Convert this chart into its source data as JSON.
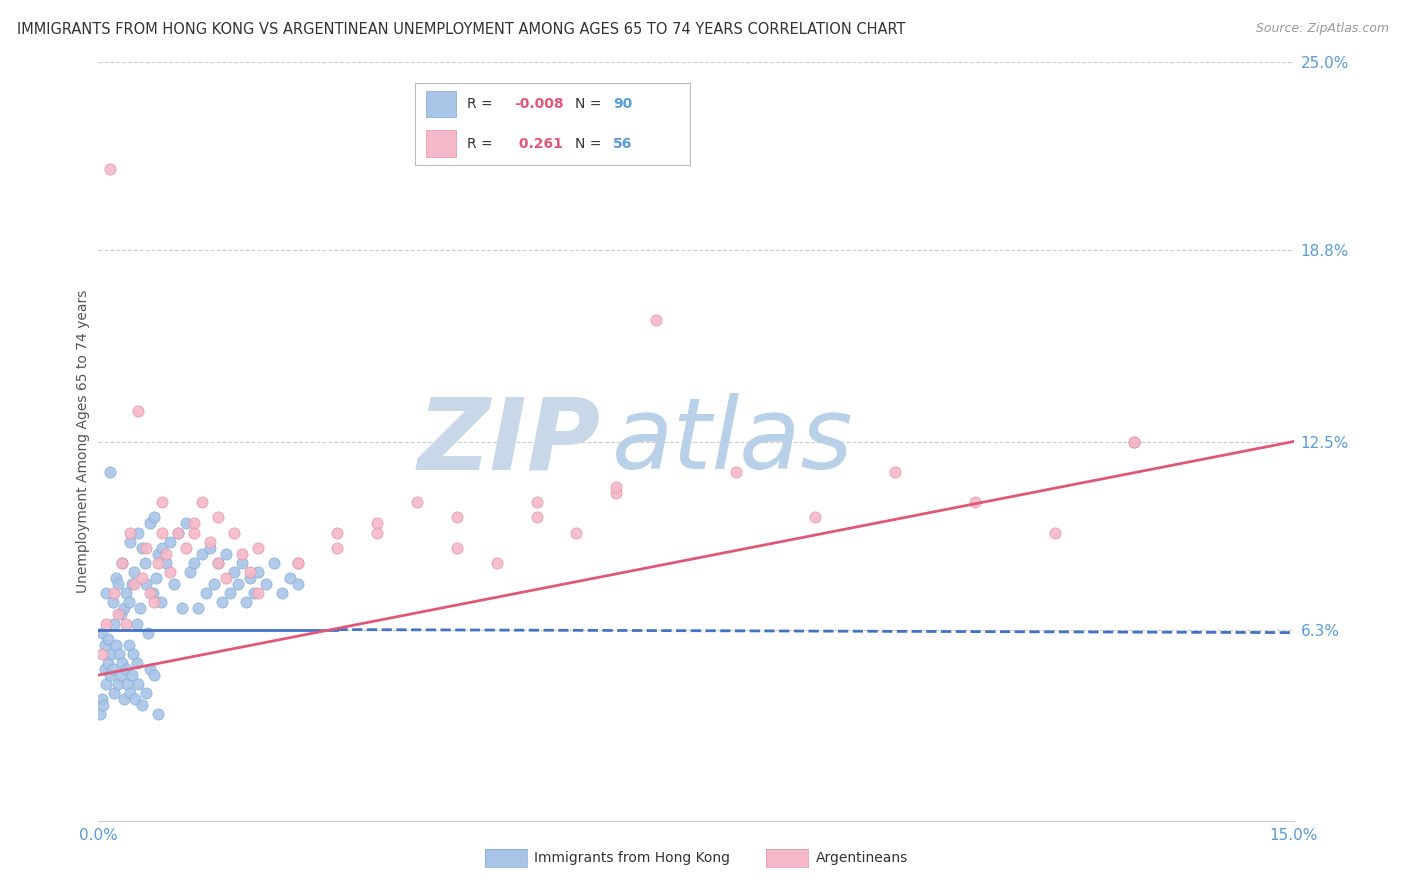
{
  "title": "IMMIGRANTS FROM HONG KONG VS ARGENTINEAN UNEMPLOYMENT AMONG AGES 65 TO 74 YEARS CORRELATION CHART",
  "source": "Source: ZipAtlas.com",
  "ylabel": "Unemployment Among Ages 65 to 74 years",
  "xlim": [
    0.0,
    15.0
  ],
  "ylim": [
    0.0,
    25.0
  ],
  "x_tick_labels": [
    "0.0%",
    "15.0%"
  ],
  "y_tick_values": [
    0.0,
    6.3,
    12.5,
    18.8,
    25.0
  ],
  "y_tick_labels": [
    "",
    "6.3%",
    "12.5%",
    "18.8%",
    "25.0%"
  ],
  "grid_color": "#cccccc",
  "background_color": "#ffffff",
  "watermark_zip": "ZIP",
  "watermark_atlas": "atlas",
  "watermark_zip_color": "#c8d8e8",
  "watermark_atlas_color": "#b8d0e8",
  "series": [
    {
      "name": "Immigrants from Hong Kong",
      "R": -0.008,
      "N": 90,
      "color": "#aac4e8",
      "edge_color": "#7bacd4",
      "line_color": "#4472c4",
      "line_style": "--"
    },
    {
      "name": "Argentineans",
      "R": 0.261,
      "N": 56,
      "color": "#f4b8c8",
      "edge_color": "#e090a8",
      "line_color": "#e05878",
      "line_style": "-"
    }
  ],
  "blue_x": [
    0.05,
    0.08,
    0.1,
    0.12,
    0.15,
    0.18,
    0.2,
    0.22,
    0.25,
    0.28,
    0.3,
    0.32,
    0.35,
    0.38,
    0.4,
    0.42,
    0.45,
    0.48,
    0.5,
    0.52,
    0.55,
    0.58,
    0.6,
    0.62,
    0.65,
    0.68,
    0.7,
    0.72,
    0.75,
    0.78,
    0.8,
    0.85,
    0.9,
    0.95,
    1.0,
    1.05,
    1.1,
    1.15,
    1.2,
    1.25,
    1.3,
    1.35,
    1.4,
    1.45,
    1.5,
    1.55,
    1.6,
    1.65,
    1.7,
    1.75,
    1.8,
    1.85,
    1.9,
    1.95,
    2.0,
    2.1,
    2.2,
    2.3,
    2.4,
    2.5,
    0.02,
    0.04,
    0.06,
    0.08,
    0.1,
    0.12,
    0.14,
    0.16,
    0.18,
    0.2,
    0.22,
    0.24,
    0.26,
    0.28,
    0.3,
    0.32,
    0.34,
    0.36,
    0.38,
    0.4,
    0.42,
    0.44,
    0.46,
    0.48,
    0.5,
    0.55,
    0.6,
    0.65,
    0.7,
    0.75
  ],
  "blue_y": [
    6.2,
    5.8,
    7.5,
    6.0,
    11.5,
    7.2,
    6.5,
    8.0,
    7.8,
    6.8,
    8.5,
    7.0,
    7.5,
    7.2,
    9.2,
    7.8,
    8.2,
    6.5,
    9.5,
    7.0,
    9.0,
    8.5,
    7.8,
    6.2,
    9.8,
    7.5,
    10.0,
    8.0,
    8.8,
    7.2,
    9.0,
    8.5,
    9.2,
    7.8,
    9.5,
    7.0,
    9.8,
    8.2,
    8.5,
    7.0,
    8.8,
    7.5,
    9.0,
    7.8,
    8.5,
    7.2,
    8.8,
    7.5,
    8.2,
    7.8,
    8.5,
    7.2,
    8.0,
    7.5,
    8.2,
    7.8,
    8.5,
    7.5,
    8.0,
    7.8,
    3.5,
    4.0,
    3.8,
    5.0,
    4.5,
    5.2,
    4.8,
    5.5,
    5.0,
    4.2,
    5.8,
    4.5,
    5.5,
    4.8,
    5.2,
    4.0,
    5.0,
    4.5,
    5.8,
    4.2,
    4.8,
    5.5,
    4.0,
    5.2,
    4.5,
    3.8,
    4.2,
    5.0,
    4.8,
    3.5
  ],
  "pink_x": [
    0.05,
    0.1,
    0.15,
    0.2,
    0.25,
    0.3,
    0.35,
    0.4,
    0.45,
    0.5,
    0.55,
    0.6,
    0.65,
    0.7,
    0.75,
    0.8,
    0.85,
    0.9,
    1.0,
    1.1,
    1.2,
    1.3,
    1.4,
    1.5,
    1.6,
    1.7,
    1.8,
    1.9,
    2.0,
    2.5,
    3.0,
    3.5,
    4.0,
    4.5,
    5.0,
    5.5,
    6.0,
    6.5,
    7.0,
    8.0,
    9.0,
    10.0,
    11.0,
    12.0,
    13.0,
    0.8,
    1.2,
    1.5,
    2.0,
    2.5,
    3.0,
    3.5,
    4.5,
    5.5,
    6.5,
    13.0
  ],
  "pink_y": [
    5.5,
    6.5,
    21.5,
    7.5,
    6.8,
    8.5,
    6.5,
    9.5,
    7.8,
    13.5,
    8.0,
    9.0,
    7.5,
    7.2,
    8.5,
    9.5,
    8.8,
    8.2,
    9.5,
    9.0,
    9.8,
    10.5,
    9.2,
    8.5,
    8.0,
    9.5,
    8.8,
    8.2,
    9.0,
    8.5,
    9.5,
    9.8,
    10.5,
    9.0,
    8.5,
    10.0,
    9.5,
    10.8,
    16.5,
    11.5,
    10.0,
    11.5,
    10.5,
    9.5,
    12.5,
    10.5,
    9.5,
    10.0,
    7.5,
    8.5,
    9.0,
    9.5,
    10.0,
    10.5,
    11.0,
    12.5
  ],
  "blue_line_x0": 0.0,
  "blue_line_x1": 3.0,
  "blue_line_y0": 6.3,
  "blue_line_y1": 6.3,
  "blue_dash_x0": 3.0,
  "blue_dash_x1": 15.0,
  "blue_dash_y0": 6.3,
  "blue_dash_y1": 6.2,
  "pink_line_x0": 0.0,
  "pink_line_x1": 15.0,
  "pink_line_y0": 4.8,
  "pink_line_y1": 12.5
}
